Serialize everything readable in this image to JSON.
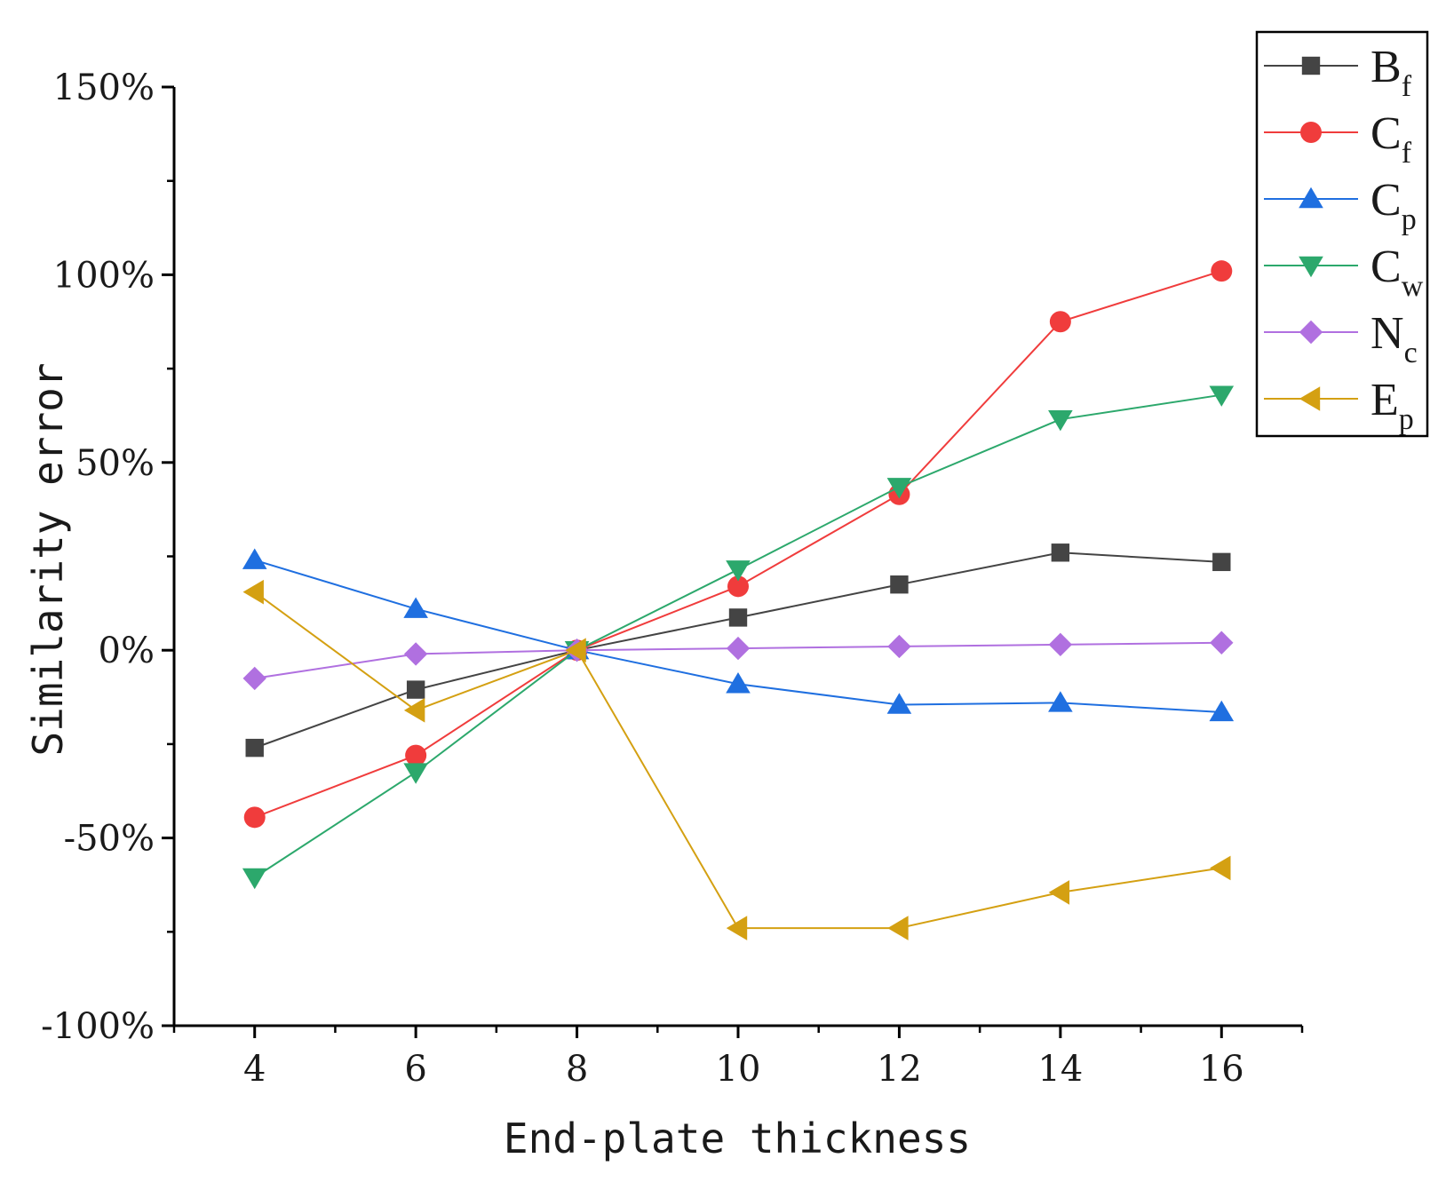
{
  "chart_data": {
    "type": "line",
    "title": "",
    "xlabel": "End-plate thickness",
    "ylabel": "Similarity error",
    "x": [
      4,
      6,
      8,
      10,
      12,
      14,
      16
    ],
    "x_ticks": [
      4,
      6,
      8,
      10,
      12,
      14,
      16
    ],
    "x_tick_labels": [
      "4",
      "6",
      "8",
      "10",
      "12",
      "14",
      "16"
    ],
    "xlim": [
      3,
      17
    ],
    "ylim": [
      -100,
      150
    ],
    "y_ticks": [
      -100,
      -50,
      0,
      50,
      100,
      150
    ],
    "y_tick_labels": [
      "-100%",
      "-50%",
      "0%",
      "50%",
      "100%",
      "150%"
    ],
    "grid": false,
    "legend_position": "top-right",
    "series": [
      {
        "name": "B",
        "subscript": "f",
        "color": "#444444",
        "marker": "square",
        "values": [
          -26,
          -10.5,
          0,
          8.7,
          17.5,
          26,
          23.5
        ]
      },
      {
        "name": "C",
        "subscript": "f",
        "color": "#f03c3c",
        "marker": "circle",
        "values": [
          -44.5,
          -28,
          0,
          17,
          41.5,
          87.5,
          101
        ]
      },
      {
        "name": "C",
        "subscript": "p",
        "color": "#1f6fe0",
        "marker": "triangle-up",
        "values": [
          24,
          11,
          0,
          -9,
          -14.5,
          -14,
          -16.5
        ]
      },
      {
        "name": "C",
        "subscript": "w",
        "color": "#2ca86c",
        "marker": "triangle-down",
        "values": [
          -60.5,
          -32.5,
          0,
          21.5,
          43.5,
          61.5,
          68
        ]
      },
      {
        "name": "N",
        "subscript": "c",
        "color": "#b070e0",
        "marker": "diamond",
        "values": [
          -7.5,
          -1,
          0,
          0.5,
          1,
          1.5,
          2
        ]
      },
      {
        "name": "E",
        "subscript": "p",
        "color": "#d4a012",
        "marker": "triangle-left",
        "values": [
          15.5,
          -16,
          0,
          -74,
          -74,
          -64.5,
          -58
        ]
      }
    ]
  }
}
